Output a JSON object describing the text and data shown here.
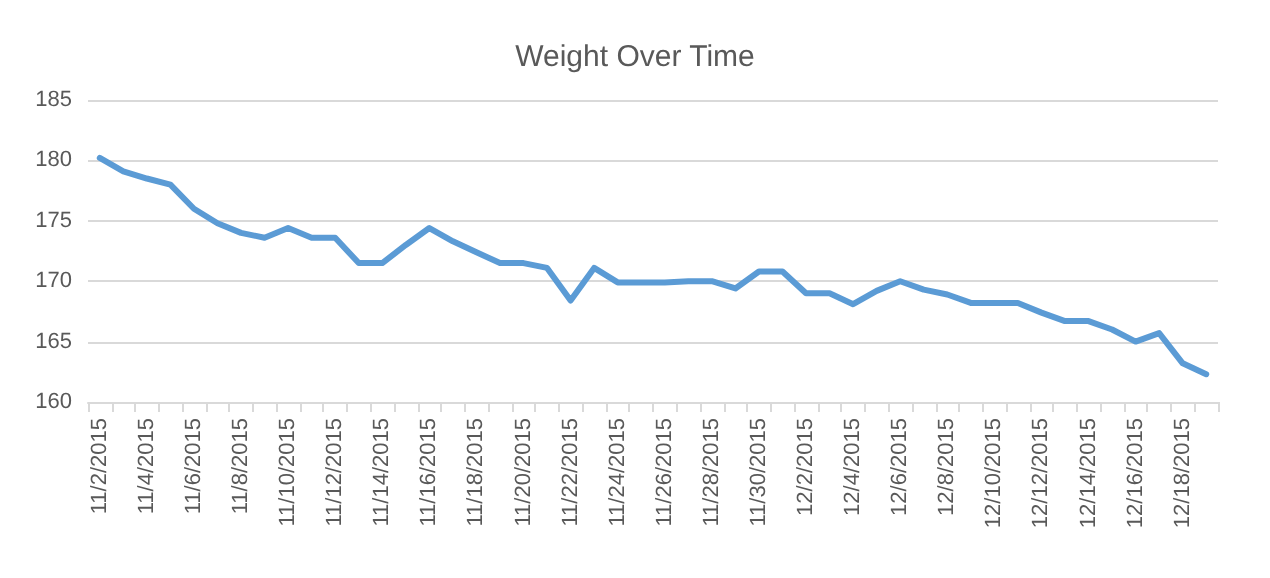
{
  "chart_data": {
    "type": "line",
    "title": "Weight Over Time",
    "categories": [
      "11/2/2015",
      null,
      "11/4/2015",
      null,
      "11/6/2015",
      null,
      "11/8/2015",
      null,
      "11/10/2015",
      null,
      "11/12/2015",
      null,
      "11/14/2015",
      null,
      "11/16/2015",
      null,
      "11/18/2015",
      null,
      "11/20/2015",
      null,
      "11/22/2015",
      null,
      "11/24/2015",
      null,
      "11/26/2015",
      null,
      "11/28/2015",
      null,
      "11/30/2015",
      null,
      "12/2/2015",
      null,
      "12/4/2015",
      null,
      "12/6/2015",
      null,
      "12/8/2015",
      null,
      "12/10/2015",
      null,
      "12/12/2015",
      null,
      "12/14/2015",
      null,
      "12/16/2015",
      null,
      "12/18/2015",
      null
    ],
    "series": [
      {
        "color": "#5b9bd5",
        "values": [
          180.2,
          179.1,
          178.5,
          178.0,
          176.0,
          174.8,
          174.0,
          173.6,
          174.4,
          173.6,
          173.6,
          171.5,
          171.5,
          173.0,
          174.4,
          173.3,
          172.4,
          171.5,
          171.5,
          171.1,
          168.4,
          171.1,
          169.9,
          169.9,
          169.9,
          170.0,
          170.0,
          169.4,
          170.8,
          170.8,
          169.0,
          169.0,
          168.1,
          169.2,
          170.0,
          169.3,
          168.9,
          168.2,
          168.2,
          168.2,
          167.4,
          166.7,
          166.7,
          166.0,
          165.0,
          165.7,
          163.2,
          162.3
        ]
      }
    ],
    "ylim": [
      160,
      185
    ],
    "yticks": [
      160,
      165,
      170,
      175,
      180,
      185
    ],
    "grid": "y",
    "marker": "none",
    "line_style": "solid"
  }
}
